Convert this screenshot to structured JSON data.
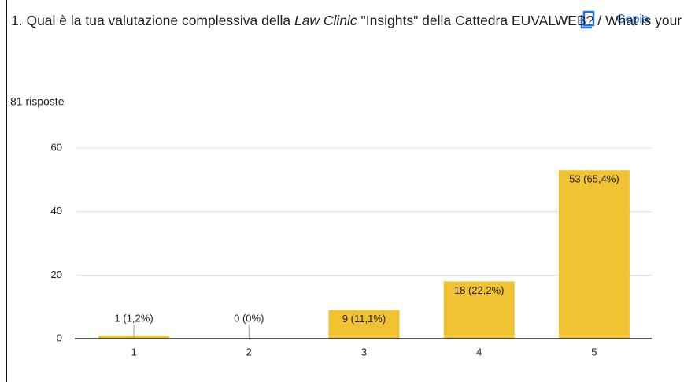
{
  "title": [
    "1. Qual è la tua valutazione complessiva della ",
    "Law Clinic",
    " \"Insights\" della Cattedra EUVALWEB? / What is your overall assessment of the EUVALWEB Chair's Law Clinic \"Insights\"?"
  ],
  "copy_button": "Copia",
  "subtitle": "81 risposte",
  "chart_data": {
    "type": "bar",
    "categories": [
      "1",
      "2",
      "3",
      "4",
      "5"
    ],
    "values": [
      1,
      0,
      9,
      18,
      53
    ],
    "value_labels": [
      "1 (1,2%)",
      "0 (0%)",
      "9 (11,1%)",
      "18 (22,2%)",
      "53 (65,4%)"
    ],
    "color": "#f1c232",
    "ylim": [
      0,
      60
    ],
    "yticks": [
      0,
      20,
      40,
      60
    ],
    "grid": true
  }
}
